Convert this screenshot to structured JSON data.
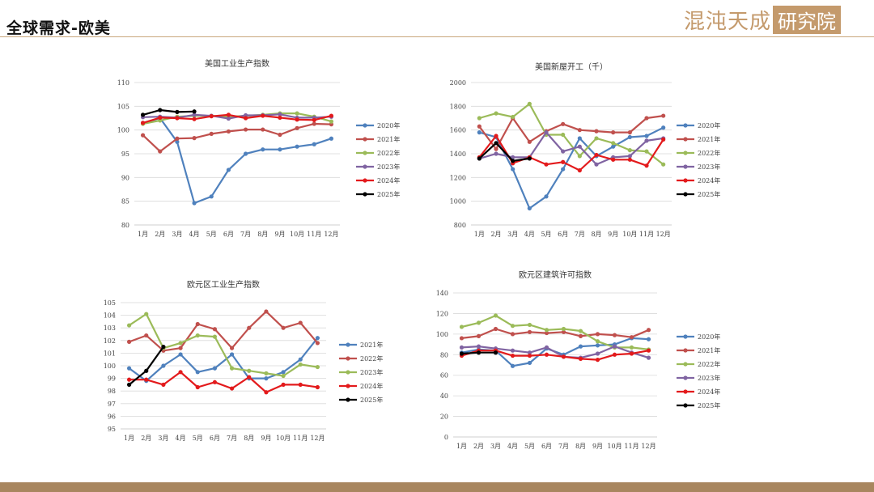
{
  "header": {
    "title": "全球需求-欧美",
    "brand_text": "混沌天成",
    "brand_box": "研究院"
  },
  "chart_data": [
    {
      "type": "line",
      "title": "美国工业生产指数",
      "categories": [
        "1月",
        "2月",
        "3月",
        "4月",
        "5月",
        "6月",
        "7月",
        "8月",
        "9月",
        "10月",
        "11月",
        "12月"
      ],
      "ylim": [
        80,
        110
      ],
      "yticks": [
        80,
        85,
        90,
        95,
        100,
        105,
        110
      ],
      "grid": true,
      "legend": "right",
      "series": [
        {
          "name": "2020年",
          "color": "#4f81bd",
          "values": [
            101.5,
            102.5,
            97.5,
            84.6,
            86.0,
            91.6,
            95.0,
            95.9,
            95.9,
            96.5,
            97.0,
            98.2
          ]
        },
        {
          "name": "2021年",
          "color": "#c0504d",
          "values": [
            98.9,
            95.5,
            98.2,
            98.3,
            99.2,
            99.7,
            100.1,
            100.1,
            99.0,
            100.4,
            101.3,
            101.2
          ]
        },
        {
          "name": "2022年",
          "color": "#9bbb59",
          "values": [
            101.3,
            102.0,
            102.8,
            103.0,
            103.0,
            102.8,
            103.0,
            103.2,
            103.5,
            103.5,
            102.8,
            101.8
          ]
        },
        {
          "name": "2023年",
          "color": "#8064a2",
          "values": [
            102.7,
            102.8,
            102.6,
            103.2,
            103.0,
            102.4,
            103.1,
            103.1,
            103.3,
            102.6,
            102.6,
            102.8
          ]
        },
        {
          "name": "2024年",
          "color": "#e31a1c",
          "values": [
            101.5,
            102.6,
            102.5,
            102.3,
            102.9,
            103.2,
            102.5,
            103.0,
            102.6,
            102.2,
            102.1,
            103.0
          ]
        },
        {
          "name": "2025年",
          "color": "#000000",
          "values": [
            103.2,
            104.2,
            103.8,
            103.9,
            null,
            null,
            null,
            null,
            null,
            null,
            null,
            null
          ]
        }
      ]
    },
    {
      "type": "line",
      "title": "美国新屋开工（千）",
      "categories": [
        "1月",
        "2月",
        "3月",
        "4月",
        "5月",
        "6月",
        "7月",
        "8月",
        "9月",
        "10月",
        "11月",
        "12月"
      ],
      "ylim": [
        800,
        2000
      ],
      "yticks": [
        800,
        1000,
        1200,
        1400,
        1600,
        1800,
        2000
      ],
      "grid": true,
      "legend": "right",
      "series": [
        {
          "name": "2020年",
          "color": "#4f81bd",
          "values": [
            1580,
            1540,
            1270,
            940,
            1040,
            1270,
            1530,
            1380,
            1460,
            1540,
            1550,
            1620
          ]
        },
        {
          "name": "2021年",
          "color": "#c0504d",
          "values": [
            1630,
            1440,
            1700,
            1500,
            1590,
            1650,
            1600,
            1590,
            1580,
            1580,
            1700,
            1720
          ]
        },
        {
          "name": "2022年",
          "color": "#9bbb59",
          "values": [
            1700,
            1740,
            1710,
            1820,
            1560,
            1560,
            1380,
            1530,
            1490,
            1430,
            1420,
            1310
          ]
        },
        {
          "name": "2023年",
          "color": "#8064a2",
          "values": [
            1360,
            1400,
            1370,
            1370,
            1580,
            1420,
            1460,
            1310,
            1370,
            1380,
            1510,
            1530
          ]
        },
        {
          "name": "2024年",
          "color": "#e31a1c",
          "values": [
            1370,
            1550,
            1320,
            1370,
            1310,
            1330,
            1260,
            1390,
            1350,
            1350,
            1300,
            1520
          ]
        },
        {
          "name": "2025年",
          "color": "#000000",
          "values": [
            1360,
            1490,
            1340,
            1360,
            null,
            null,
            null,
            null,
            null,
            null,
            null,
            null
          ]
        }
      ]
    },
    {
      "type": "line",
      "title": "欧元区工业生产指数",
      "categories": [
        "1月",
        "2月",
        "3月",
        "4月",
        "5月",
        "6月",
        "7月",
        "8月",
        "9月",
        "10月",
        "11月",
        "12月"
      ],
      "ylim": [
        95,
        105
      ],
      "yticks": [
        95,
        96,
        97,
        98,
        99,
        100,
        101,
        102,
        103,
        104,
        105
      ],
      "grid": true,
      "legend": "right",
      "series": [
        {
          "name": "2021年",
          "color": "#4f81bd",
          "values": [
            99.8,
            98.8,
            100.0,
            100.9,
            99.5,
            99.8,
            100.9,
            99.0,
            99.0,
            99.5,
            100.5,
            102.2
          ]
        },
        {
          "name": "2022年",
          "color": "#c0504d",
          "values": [
            101.9,
            102.4,
            101.2,
            101.4,
            103.3,
            102.9,
            101.4,
            103.0,
            104.3,
            103.0,
            103.4,
            101.8
          ]
        },
        {
          "name": "2023年",
          "color": "#9bbb59",
          "values": [
            103.2,
            104.1,
            101.4,
            101.8,
            102.4,
            102.3,
            99.8,
            99.6,
            99.4,
            99.2,
            100.1,
            99.9
          ]
        },
        {
          "name": "2024年",
          "color": "#e31a1c",
          "values": [
            98.9,
            98.9,
            98.5,
            99.5,
            98.3,
            98.7,
            98.2,
            99.1,
            97.9,
            98.5,
            98.5,
            98.3
          ]
        },
        {
          "name": "2025年",
          "color": "#000000",
          "values": [
            98.5,
            99.6,
            101.5,
            null,
            null,
            null,
            null,
            null,
            null,
            null,
            null,
            null
          ]
        }
      ]
    },
    {
      "type": "line",
      "title": "欧元区建筑许可指数",
      "categories": [
        "1月",
        "2月",
        "3月",
        "4月",
        "5月",
        "6月",
        "7月",
        "8月",
        "9月",
        "10月",
        "11月",
        "12月"
      ],
      "ylim": [
        0,
        140
      ],
      "yticks": [
        0,
        20,
        40,
        60,
        80,
        100,
        120,
        140
      ],
      "grid": true,
      "legend": "right",
      "series": [
        {
          "name": "2020年",
          "color": "#4f81bd",
          "values": [
            82,
            85,
            84,
            69,
            72,
            86,
            80,
            88,
            89,
            90,
            96,
            95
          ]
        },
        {
          "name": "2021年",
          "color": "#c0504d",
          "values": [
            96,
            98,
            105,
            100,
            102,
            101,
            102,
            98,
            100,
            99,
            97,
            104
          ]
        },
        {
          "name": "2022年",
          "color": "#9bbb59",
          "values": [
            107,
            111,
            118,
            108,
            109,
            104,
            105,
            103,
            93,
            87,
            87,
            85
          ]
        },
        {
          "name": "2023年",
          "color": "#8064a2",
          "values": [
            87,
            88,
            86,
            84,
            82,
            87,
            78,
            77,
            81,
            88,
            82,
            77
          ]
        },
        {
          "name": "2024年",
          "color": "#e31a1c",
          "values": [
            79,
            84,
            84,
            79,
            79,
            80,
            78,
            76,
            75,
            80,
            81,
            84
          ]
        },
        {
          "name": "2025年",
          "color": "#000000",
          "values": [
            81,
            82,
            82,
            null,
            null,
            null,
            null,
            null,
            null,
            null,
            null,
            null
          ]
        }
      ]
    }
  ]
}
